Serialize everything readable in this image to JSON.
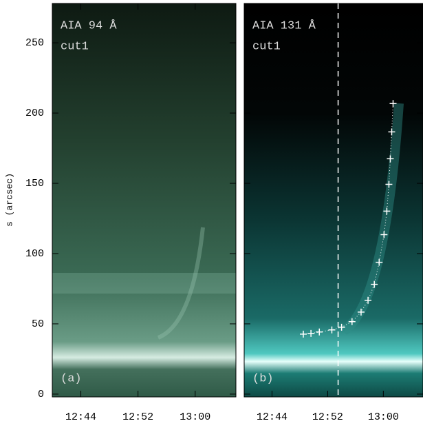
{
  "chart_data": [
    {
      "type": "image",
      "title": "AIA 94 Å",
      "subtitle": "cut1",
      "panel_label": "(a)",
      "y_label": "s (arcsec)",
      "xlim": [
        40,
        65.7
      ],
      "xticks": [
        {
          "value": 44,
          "label": "12:44"
        },
        {
          "value": 52,
          "label": "12:52"
        },
        {
          "value": 60,
          "label": "13:00"
        }
      ],
      "ylim": [
        -2,
        278
      ],
      "yticks": [
        0,
        50,
        100,
        150,
        200,
        250
      ]
    },
    {
      "type": "scatter",
      "title": "AIA 131 Å",
      "subtitle": "cut1",
      "panel_label": "(b)",
      "color": "#ffffff",
      "xlim": [
        40,
        65.7
      ],
      "xticks": [
        {
          "value": 44,
          "label": "12:44"
        },
        {
          "value": 52,
          "label": "12:52"
        },
        {
          "value": 60,
          "label": "13:00"
        }
      ],
      "ylim": [
        -2,
        278
      ],
      "yticks": [
        0,
        50,
        100,
        150,
        200,
        250
      ],
      "vline": 53.5,
      "x": [
        48.5,
        49.6,
        50.8,
        52.6,
        54.0,
        55.5,
        56.8,
        57.8,
        58.7,
        59.4,
        60.1,
        60.5,
        60.8,
        61.0,
        61.2,
        61.4
      ],
      "values": [
        42.7,
        43.2,
        44.2,
        45.7,
        47.6,
        51.6,
        58.4,
        66.8,
        78.1,
        93.8,
        113.5,
        130.2,
        149.3,
        167.5,
        186.6,
        206.8
      ]
    }
  ]
}
